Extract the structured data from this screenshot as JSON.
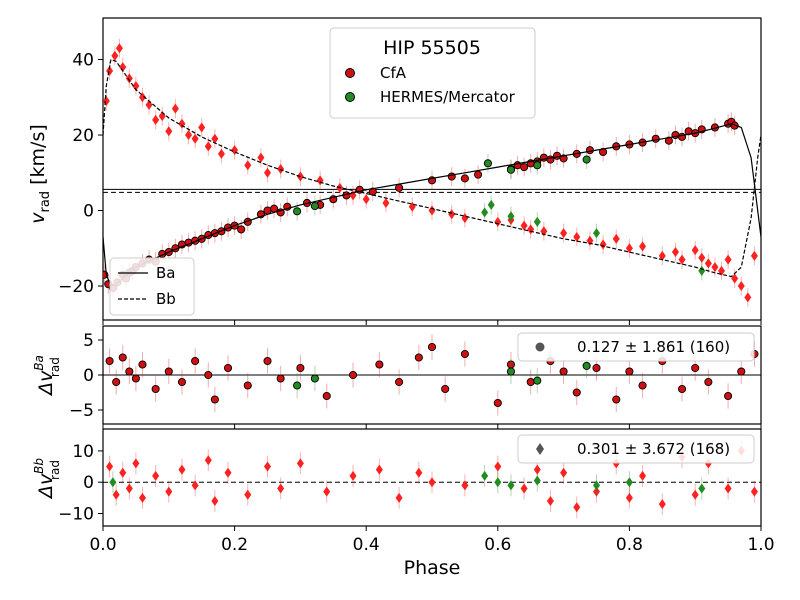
{
  "chart_data": [
    {
      "panel": "main",
      "type": "scatter",
      "title": "HIP 55505",
      "xlabel": "Phase",
      "ylabel": "v",
      "ylabel_sub": "rad",
      "ylabel_unit": " [km/s]",
      "xlim": [
        0.0,
        1.0
      ],
      "ylim": [
        -29,
        51
      ],
      "xticks": [
        0.0,
        0.2,
        0.4,
        0.6,
        0.8,
        1.0
      ],
      "xtick_labels": [
        "0.0",
        "0.2",
        "0.4",
        "0.6",
        "0.8",
        "1.0"
      ],
      "yticks": [
        -20,
        0,
        20,
        40
      ],
      "ytick_labels": [
        "−20",
        "0",
        "20",
        "40"
      ],
      "legend_data": [
        {
          "label": "CfA",
          "color": "#d01010",
          "edge": "#000000",
          "marker": "circle"
        },
        {
          "label": "HERMES/Mercator",
          "color": "#228b22",
          "edge": "#000000",
          "marker": "circle"
        }
      ],
      "legend_models": [
        {
          "label": "Ba",
          "style": "solid"
        },
        {
          "label": "Bb",
          "style": "dashed"
        }
      ],
      "gamma_lines": [
        {
          "value": 5.6,
          "style": "solid"
        },
        {
          "value": 4.8,
          "style": "dashed"
        }
      ],
      "model_ba_phase": [
        0.0,
        0.005,
        0.012,
        0.02,
        0.05,
        0.1,
        0.15,
        0.2,
        0.25,
        0.3,
        0.35,
        0.4,
        0.45,
        0.5,
        0.55,
        0.6,
        0.65,
        0.7,
        0.75,
        0.8,
        0.85,
        0.9,
        0.93,
        0.955,
        0.97,
        0.985,
        0.995,
        1.0
      ],
      "model_ba_v": [
        -7,
        -17,
        -20,
        -19.5,
        -15,
        -11,
        -7.5,
        -4,
        -1,
        1.5,
        3.5,
        5.5,
        7,
        8.5,
        10,
        11.5,
        13,
        14.5,
        16,
        17.5,
        19,
        20.5,
        21.8,
        23,
        22,
        14,
        0,
        -7
      ],
      "model_bb_phase": [
        0.0,
        0.005,
        0.012,
        0.02,
        0.05,
        0.1,
        0.15,
        0.2,
        0.25,
        0.3,
        0.35,
        0.4,
        0.45,
        0.5,
        0.55,
        0.6,
        0.65,
        0.7,
        0.75,
        0.8,
        0.85,
        0.9,
        0.93,
        0.955,
        0.97,
        0.985,
        0.995,
        1.0
      ],
      "model_bb_v": [
        20,
        33,
        40,
        39.5,
        32,
        24.5,
        19.5,
        15.5,
        12,
        9,
        6.5,
        4.5,
        2.5,
        0.5,
        -1.5,
        -3.5,
        -5.5,
        -7.5,
        -9,
        -11,
        -13,
        -15,
        -16.5,
        -17.5,
        -15,
        -2,
        14,
        20
      ],
      "series": [
        {
          "name": "CfA",
          "component": "Ba",
          "marker": "circle",
          "color": "#d01010",
          "phase": [
            0.002,
            0.008,
            0.015,
            0.022,
            0.03,
            0.035,
            0.04,
            0.045,
            0.05,
            0.06,
            0.07,
            0.08,
            0.09,
            0.1,
            0.11,
            0.12,
            0.13,
            0.14,
            0.15,
            0.16,
            0.17,
            0.18,
            0.19,
            0.2,
            0.21,
            0.22,
            0.24,
            0.25,
            0.26,
            0.27,
            0.28,
            0.31,
            0.33,
            0.35,
            0.37,
            0.39,
            0.41,
            0.45,
            0.5,
            0.53,
            0.55,
            0.57,
            0.62,
            0.63,
            0.64,
            0.65,
            0.66,
            0.67,
            0.68,
            0.69,
            0.7,
            0.72,
            0.74,
            0.76,
            0.78,
            0.8,
            0.82,
            0.84,
            0.86,
            0.87,
            0.88,
            0.89,
            0.9,
            0.91,
            0.93,
            0.95,
            0.955,
            0.96
          ],
          "v": [
            -17,
            -19.5,
            -20.5,
            -19,
            -17,
            -18,
            -16.5,
            -16,
            -15,
            -14,
            -13,
            -13.5,
            -11.5,
            -11,
            -10,
            -9,
            -8.5,
            -8,
            -7.5,
            -6.5,
            -6,
            -5.5,
            -4.5,
            -4,
            -5,
            -3,
            -1,
            0,
            0.5,
            -0.5,
            1,
            2,
            1.5,
            3,
            4,
            5.5,
            5,
            6,
            8,
            9,
            8.5,
            9.5,
            11,
            12,
            11.5,
            12.5,
            13,
            14,
            13.5,
            14.5,
            13.8,
            15,
            16,
            15.5,
            17,
            17.5,
            18,
            19,
            18.5,
            20,
            19.5,
            21,
            20.5,
            21.5,
            22,
            23,
            23.5,
            22.5
          ]
        },
        {
          "name": "HERMES/Mercator",
          "component": "Ba",
          "marker": "circle",
          "color": "#228b22",
          "phase": [
            0.295,
            0.322,
            0.585,
            0.62,
            0.66,
            0.735
          ],
          "v": [
            -0.2,
            1.2,
            12.5,
            10.8,
            12,
            13.5
          ]
        },
        {
          "name": "CfA",
          "component": "Bb",
          "marker": "diamond",
          "color": "#ff2020",
          "phase": [
            0.005,
            0.01,
            0.018,
            0.025,
            0.03,
            0.04,
            0.05,
            0.06,
            0.07,
            0.08,
            0.09,
            0.1,
            0.11,
            0.12,
            0.13,
            0.14,
            0.15,
            0.16,
            0.17,
            0.18,
            0.2,
            0.22,
            0.24,
            0.25,
            0.27,
            0.3,
            0.33,
            0.36,
            0.38,
            0.4,
            0.43,
            0.47,
            0.5,
            0.53,
            0.55,
            0.6,
            0.62,
            0.64,
            0.65,
            0.67,
            0.7,
            0.72,
            0.74,
            0.76,
            0.78,
            0.8,
            0.82,
            0.85,
            0.87,
            0.88,
            0.9,
            0.91,
            0.92,
            0.93,
            0.94,
            0.95,
            0.96,
            0.97,
            0.98,
            0.99
          ],
          "v": [
            29,
            37,
            41,
            43,
            38,
            35,
            33,
            30,
            28,
            24,
            25,
            21,
            27,
            23,
            20,
            19,
            22,
            17,
            19,
            15,
            16,
            12,
            14,
            10,
            11,
            9,
            8,
            6,
            4,
            3,
            2,
            1,
            0,
            -1,
            -2,
            -3,
            -2.5,
            -4,
            -5,
            -5.5,
            -6,
            -7,
            -8,
            -9,
            -7.5,
            -10,
            -9.5,
            -12,
            -11,
            -13,
            -10.5,
            -12.5,
            -14,
            -15,
            -16,
            -13,
            -18,
            -20,
            -23,
            -12
          ]
        },
        {
          "name": "HERMES/Mercator",
          "component": "Bb",
          "marker": "diamond",
          "color": "#228b22",
          "phase": [
            0.58,
            0.59,
            0.62,
            0.66,
            0.75,
            0.91
          ],
          "v": [
            -0.5,
            1.5,
            -1.5,
            -3,
            -6,
            -16
          ]
        }
      ]
    },
    {
      "panel": "residual-ba",
      "type": "scatter",
      "ylabel": "Δv",
      "ylabel_sup": "Ba",
      "ylabel_sub": "rad",
      "ylim": [
        -7,
        7
      ],
      "yticks": [
        -5,
        0,
        5
      ],
      "ytick_labels": [
        "−5",
        "0",
        "5"
      ],
      "stat_text": "0.127 ± 1.861 (160)",
      "series": [
        {
          "name": "CfA",
          "marker": "circle",
          "color": "#d01010",
          "phase": [
            0.01,
            0.02,
            0.03,
            0.04,
            0.05,
            0.06,
            0.08,
            0.1,
            0.12,
            0.14,
            0.16,
            0.17,
            0.19,
            0.22,
            0.25,
            0.27,
            0.3,
            0.34,
            0.38,
            0.42,
            0.45,
            0.48,
            0.5,
            0.52,
            0.55,
            0.6,
            0.62,
            0.65,
            0.68,
            0.7,
            0.72,
            0.75,
            0.78,
            0.8,
            0.82,
            0.85,
            0.88,
            0.9,
            0.92,
            0.95,
            0.97,
            0.99
          ],
          "v": [
            2,
            -1,
            2.5,
            0.5,
            -0.5,
            1.5,
            -2,
            0.5,
            -1,
            2,
            0,
            -3.5,
            1,
            -1.5,
            2,
            -0.5,
            1,
            -3,
            0,
            1.5,
            -1,
            2.5,
            4,
            -2,
            3,
            -4,
            1.5,
            -1,
            2,
            0.5,
            -2.5,
            1,
            -3.5,
            0.5,
            -1.5,
            2,
            -2,
            1,
            -1,
            -3,
            0.5,
            3
          ]
        },
        {
          "name": "HERMES/Mercator",
          "marker": "circle",
          "color": "#228b22",
          "phase": [
            0.295,
            0.322,
            0.62,
            0.66,
            0.735
          ],
          "v": [
            -1.5,
            -0.5,
            0.5,
            -0.8,
            1.3
          ]
        }
      ]
    },
    {
      "panel": "residual-bb",
      "type": "scatter",
      "xlabel": "Phase",
      "ylabel": "Δv",
      "ylabel_sup": "Bb",
      "ylabel_sub": "rad",
      "ylim": [
        -14,
        17
      ],
      "yticks": [
        -10,
        0,
        10
      ],
      "ytick_labels": [
        "−10",
        "0",
        "10"
      ],
      "stat_text": "0.301 ± 3.672 (168)",
      "series": [
        {
          "name": "CfA",
          "marker": "diamond",
          "color": "#ff2020",
          "phase": [
            0.01,
            0.02,
            0.03,
            0.04,
            0.05,
            0.06,
            0.08,
            0.1,
            0.12,
            0.14,
            0.16,
            0.17,
            0.19,
            0.22,
            0.25,
            0.27,
            0.3,
            0.34,
            0.38,
            0.42,
            0.45,
            0.48,
            0.5,
            0.55,
            0.6,
            0.64,
            0.66,
            0.68,
            0.7,
            0.72,
            0.75,
            0.78,
            0.8,
            0.82,
            0.85,
            0.88,
            0.9,
            0.92,
            0.95,
            0.97,
            0.99
          ],
          "v": [
            5,
            -4,
            3,
            -2,
            6,
            -5,
            2,
            -3,
            4,
            -1,
            7,
            -6,
            3,
            -4,
            5,
            -2,
            6,
            -3,
            2,
            4,
            -5,
            3,
            0,
            -1,
            5,
            -2,
            4,
            -6,
            3,
            -8,
            -3,
            6,
            -5,
            2,
            -7,
            8,
            -4,
            6,
            -2,
            10,
            -3
          ]
        },
        {
          "name": "HERMES/Mercator",
          "marker": "diamond",
          "color": "#228b22",
          "phase": [
            0.015,
            0.58,
            0.6,
            0.62,
            0.66,
            0.75,
            0.8,
            0.91
          ],
          "v": [
            0,
            2,
            0,
            -1,
            0.5,
            -1,
            0,
            -2
          ]
        }
      ]
    }
  ]
}
